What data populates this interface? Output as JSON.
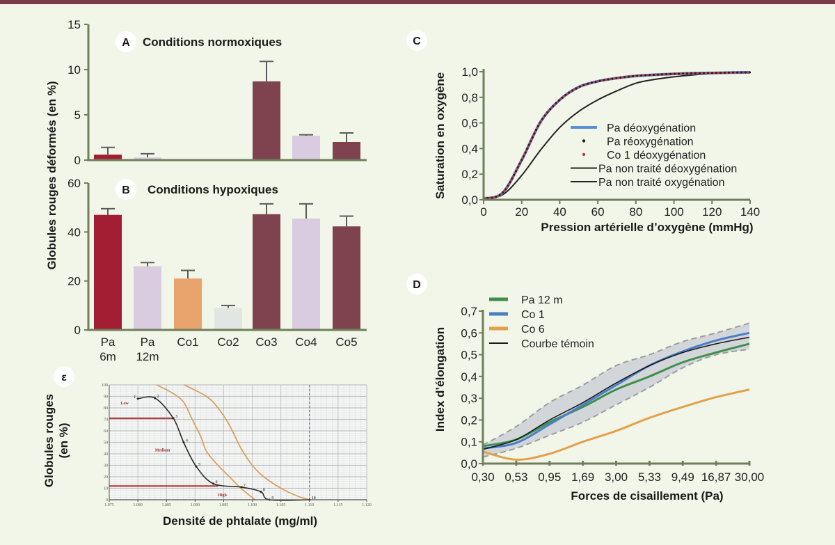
{
  "colors": {
    "top_band": "#7a3a4a",
    "axis": "#6f7f5b",
    "background": "#f1f6e8"
  },
  "shared_ylabel_AB": "Globules rouges déformés (en %)",
  "chart_data": [
    {
      "panel": "A",
      "type": "bar",
      "title": "Conditions normoxiques",
      "categories": [
        "Pa 6m",
        "Pa 12m",
        "Co1",
        "Co2",
        "Co3",
        "Co4",
        "Co5"
      ],
      "values": [
        0.6,
        0.3,
        0,
        0,
        8.7,
        2.7,
        2.0
      ],
      "error_upper": [
        1.4,
        0.7,
        0,
        0,
        10.9,
        2.8,
        3.0
      ],
      "bar_colors": [
        "#a31d33",
        "#d9cbe0",
        "#e9a46e",
        "#e2e6e3",
        "#7f4350",
        "#d9cbe0",
        "#7f4350"
      ],
      "ylim": [
        0,
        15
      ],
      "yticks": [
        "0",
        "5",
        "10",
        "15"
      ]
    },
    {
      "panel": "B",
      "type": "bar",
      "title": "Conditions hypoxiques",
      "categories": [
        "Pa 6m",
        "Pa 12m",
        "Co1",
        "Co2",
        "Co3",
        "Co4",
        "Co5"
      ],
      "category_lines": [
        [
          "Pa",
          "6m"
        ],
        [
          "Pa",
          "12m"
        ],
        [
          "Co1"
        ],
        [
          "Co2"
        ],
        [
          "Co3"
        ],
        [
          "Co4"
        ],
        [
          "Co5"
        ]
      ],
      "values": [
        47,
        26,
        21,
        9,
        47.3,
        45.5,
        42.3
      ],
      "error_upper": [
        49.5,
        27.5,
        24.3,
        10,
        51.5,
        51.5,
        46.5
      ],
      "bar_colors": [
        "#a31d33",
        "#d9cbe0",
        "#e9a46e",
        "#e2e6e3",
        "#7f4350",
        "#d9cbe0",
        "#7f4350"
      ],
      "ylim": [
        0,
        60
      ],
      "yticks": [
        "0",
        "20",
        "40",
        "60"
      ]
    },
    {
      "panel": "C",
      "type": "line",
      "xlabel": "Pression artérielle d’oxygène (mmHg)",
      "ylabel": "Saturation en oxygène",
      "xlim": [
        0,
        140
      ],
      "ylim": [
        0,
        1
      ],
      "xticks": [
        "0",
        "20",
        "40",
        "60",
        "80",
        "100",
        "120",
        "140"
      ],
      "yticks": [
        "0,0",
        "0,2",
        "0,4",
        "0,6",
        "0,8",
        "1,0"
      ],
      "x": [
        0,
        10,
        20,
        30,
        40,
        50,
        60,
        70,
        80,
        90,
        100,
        110,
        120,
        130,
        140
      ],
      "series": [
        {
          "name": "Pa déoxygénation",
          "style": "line",
          "color": "#5b8fd6",
          "values": [
            0.01,
            0.054,
            0.31,
            0.61,
            0.78,
            0.88,
            0.925,
            0.95,
            0.967,
            0.976,
            0.983,
            0.988,
            0.99,
            0.993,
            0.995
          ]
        },
        {
          "name": "Pa réoxygénation",
          "style": "dots",
          "color": "#222222",
          "values": [
            0.01,
            0.054,
            0.31,
            0.61,
            0.78,
            0.88,
            0.925,
            0.95,
            0.967,
            0.976,
            0.983,
            0.988,
            0.99,
            0.993,
            0.995
          ]
        },
        {
          "name": "Co 1 déoxygénation",
          "style": "dots",
          "color": "#c0394a",
          "values": [
            0.01,
            0.054,
            0.31,
            0.61,
            0.78,
            0.88,
            0.925,
            0.95,
            0.967,
            0.976,
            0.983,
            0.988,
            0.99,
            0.993,
            0.995
          ]
        },
        {
          "name": "Pa non traité déoxygénation",
          "style": "line",
          "color": "#222222",
          "values": [
            0.01,
            0.054,
            0.31,
            0.61,
            0.78,
            0.88,
            0.925,
            0.95,
            0.967,
            0.976,
            0.983,
            0.988,
            0.99,
            0.993,
            0.995
          ]
        },
        {
          "name": "Pa non traité oxygénation",
          "style": "line",
          "color": "#222222",
          "values": [
            0.01,
            0.039,
            0.19,
            0.39,
            0.565,
            0.69,
            0.78,
            0.85,
            0.91,
            0.94,
            0.96,
            0.975,
            0.985,
            0.99,
            0.995
          ]
        }
      ],
      "legend": "center-right"
    },
    {
      "panel": "D",
      "type": "line",
      "xlabel": "Forces de cisaillement (Pa)",
      "ylabel": "Index d’élongation",
      "categories": [
        "0,30",
        "0,53",
        "0,95",
        "1,69",
        "3,00",
        "5,33",
        "9,49",
        "16,87",
        "30,00"
      ],
      "ylim": [
        0,
        0.7
      ],
      "yticks": [
        "0,0",
        "0,1",
        "0,2",
        "0,3",
        "0,4",
        "0,5",
        "0,6",
        "0,7"
      ],
      "series": [
        {
          "name": "Pa 12 m",
          "color": "#3f8f4c",
          "values": [
            0.08,
            0.11,
            0.19,
            0.26,
            0.34,
            0.4,
            0.465,
            0.51,
            0.55
          ]
        },
        {
          "name": "Co 1",
          "color": "#4a7fc8",
          "values": [
            0.07,
            0.095,
            0.18,
            0.27,
            0.36,
            0.45,
            0.515,
            0.565,
            0.6
          ]
        },
        {
          "name": "Co 6",
          "color": "#e3a04a",
          "values": [
            0.055,
            0.018,
            0.045,
            0.1,
            0.15,
            0.21,
            0.26,
            0.305,
            0.34
          ]
        },
        {
          "name": "Courbe témoin",
          "color": "#1a1a1a",
          "values": [
            0.065,
            0.11,
            0.2,
            0.28,
            0.37,
            0.45,
            0.51,
            0.55,
            0.58
          ]
        }
      ],
      "reference_band": {
        "upper": [
          0.085,
          0.17,
          0.28,
          0.36,
          0.45,
          0.5,
          0.56,
          0.6,
          0.645
        ],
        "lower": [
          0.03,
          0.07,
          0.13,
          0.19,
          0.27,
          0.35,
          0.44,
          0.5,
          0.525
        ]
      },
      "legend": "top-left"
    },
    {
      "panel": "ε",
      "type": "line",
      "xlabel": "Densité de phtalate (mg/ml)",
      "ylabel_lines": [
        "Globules rouges",
        "(en %)"
      ],
      "xlim": [
        1.075,
        1.12
      ],
      "ylim": [
        0,
        100
      ],
      "xticks": [
        "1.075",
        "1.080",
        "1.085",
        "1.090",
        "1.095",
        "1.100",
        "1.105",
        "1.110",
        "1.115",
        "1.120"
      ],
      "yticks": [
        "0",
        "10",
        "20",
        "30",
        "40",
        "50",
        "60",
        "70",
        "80",
        "90",
        "100"
      ],
      "grid": true,
      "black_curve": {
        "point_labels": [
          "1",
          "2",
          "3",
          "4",
          "5",
          "6",
          "7",
          "8",
          "9",
          "10"
        ],
        "x": [
          1.08,
          1.083,
          1.0862,
          1.088,
          1.0902,
          1.0932,
          1.0981,
          1.1015,
          1.103,
          1.11
        ],
        "y": [
          88,
          88.5,
          71,
          50,
          29,
          14,
          11,
          7,
          0,
          0
        ]
      },
      "orange_curves": [
        {
          "x": [
            1.0833,
            1.086,
            1.088,
            1.0895,
            1.091,
            1.092,
            1.094,
            1.096,
            1.098,
            1.1005
          ],
          "y": [
            100,
            93,
            85,
            70,
            55,
            42,
            30,
            20,
            10,
            0
          ]
        },
        {
          "x": [
            1.0881,
            1.092,
            1.094,
            1.096,
            1.098,
            1.1,
            1.102,
            1.105,
            1.108,
            1.11
          ],
          "y": [
            100,
            90,
            80,
            65,
            45,
            30,
            20,
            10,
            3,
            0
          ]
        }
      ],
      "red_thresholds": [
        {
          "y": 71,
          "x_end": 1.0862
        },
        {
          "y": 12,
          "x_end": 1.094
        }
      ],
      "dashed_vertical_x": 1.11,
      "zones": [
        {
          "label": "Low",
          "x": 1.077,
          "y": 83
        },
        {
          "label": "Medium",
          "x": 1.083,
          "y": 42
        },
        {
          "label": "High",
          "x": 1.094,
          "y": 3
        }
      ],
      "grid_colors": {
        "major": "#b9bec4",
        "minor": "#dde0e3"
      }
    }
  ]
}
